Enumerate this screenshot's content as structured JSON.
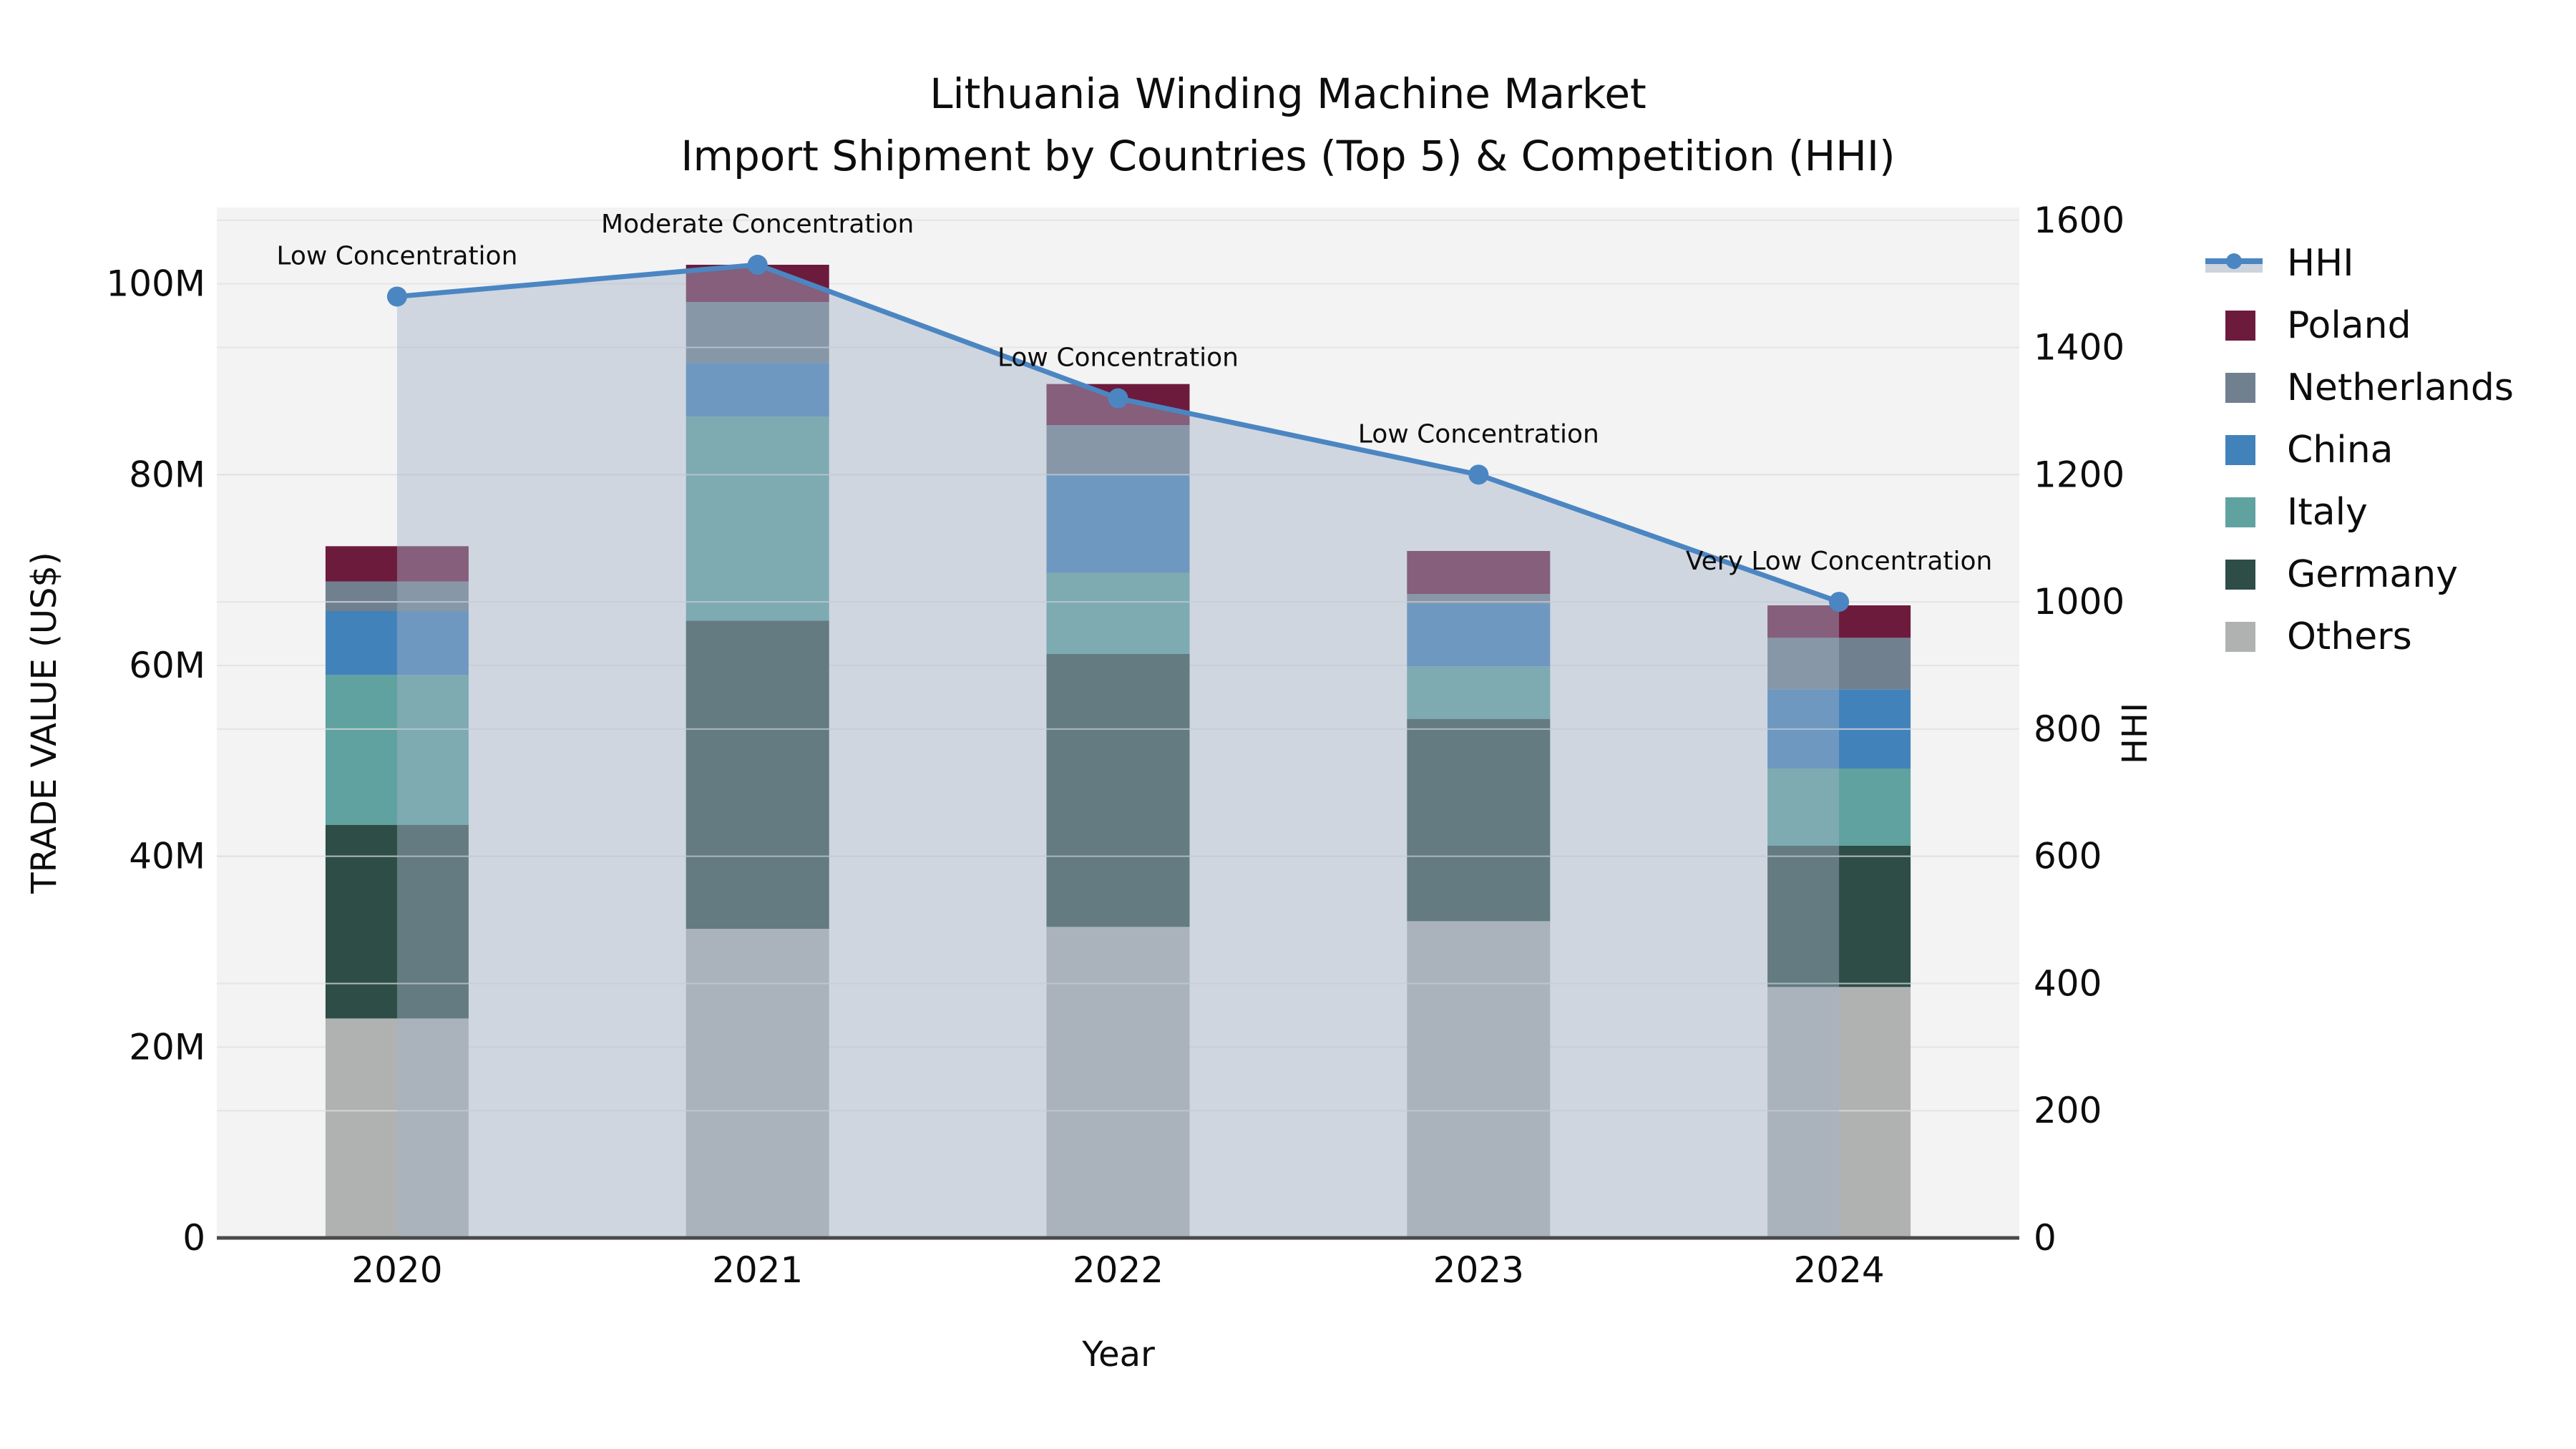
{
  "title": {
    "line1": "Lithuania Winding Machine Market",
    "line2": "Import Shipment by Countries (Top 5) & Competition (HHI)"
  },
  "axes": {
    "left_title": "TRADE VALUE (US$)",
    "right_title": "HHI",
    "bottom_title": "Year",
    "left_ticks": [
      {
        "label": "0",
        "value_musd": 0
      },
      {
        "label": "20M",
        "value_musd": 20
      },
      {
        "label": "40M",
        "value_musd": 40
      },
      {
        "label": "60M",
        "value_musd": 60
      },
      {
        "label": "80M",
        "value_musd": 80
      },
      {
        "label": "100M",
        "value_musd": 100
      }
    ],
    "right_ticks": [
      {
        "label": "0",
        "value": 0
      },
      {
        "label": "200",
        "value": 200
      },
      {
        "label": "400",
        "value": 400
      },
      {
        "label": "600",
        "value": 600
      },
      {
        "label": "800",
        "value": 800
      },
      {
        "label": "1000",
        "value": 1000
      },
      {
        "label": "1200",
        "value": 1200
      },
      {
        "label": "1400",
        "value": 1400
      },
      {
        "label": "1600",
        "value": 1600
      }
    ]
  },
  "legend": {
    "items": [
      {
        "label": "HHI",
        "type": "line",
        "color": "#4b86c2"
      },
      {
        "label": "Poland",
        "type": "square",
        "color": "#6c1b3d"
      },
      {
        "label": "Netherlands",
        "type": "square",
        "color": "#71808f"
      },
      {
        "label": "China",
        "type": "square",
        "color": "#4282bb"
      },
      {
        "label": "Italy",
        "type": "square",
        "color": "#5fa2a0"
      },
      {
        "label": "Germany",
        "type": "square",
        "color": "#2e4d47"
      },
      {
        "label": "Others",
        "type": "square",
        "color": "#b0b2b2"
      }
    ]
  },
  "chart_data": {
    "type": "bar",
    "subtype": "stacked-bars-with-line-overlay",
    "title": "Lithuania Winding Machine Market",
    "subtitle": "Import Shipment by Countries (Top 5) & Competition (HHI)",
    "xlabel": "Year",
    "ylabel": "TRADE VALUE (US$)",
    "ylabel_right": "HHI",
    "categories": [
      "2020",
      "2021",
      "2022",
      "2023",
      "2024"
    ],
    "stack_order_bottom_to_top": [
      "Others",
      "Germany",
      "Italy",
      "China",
      "Netherlands",
      "Poland"
    ],
    "series": [
      {
        "name": "Others",
        "color": "#b0b2b2",
        "values_musd": [
          23.0,
          32.4,
          32.6,
          33.2,
          26.3
        ]
      },
      {
        "name": "Germany",
        "color": "#2e4d47",
        "values_musd": [
          20.3,
          32.3,
          28.6,
          21.2,
          14.8
        ]
      },
      {
        "name": "Italy",
        "color": "#5fa2a0",
        "values_musd": [
          15.7,
          21.4,
          8.5,
          5.5,
          8.1
        ]
      },
      {
        "name": "China",
        "color": "#4282bb",
        "values_musd": [
          6.7,
          5.6,
          10.3,
          6.6,
          8.3
        ]
      },
      {
        "name": "Netherlands",
        "color": "#71808f",
        "values_musd": [
          3.1,
          6.4,
          5.2,
          1.0,
          5.4
        ]
      },
      {
        "name": "Poland",
        "color": "#6c1b3d",
        "values_musd": [
          3.7,
          3.9,
          4.3,
          4.5,
          3.4
        ]
      }
    ],
    "bar_totals_musd": [
      72.5,
      102.0,
      89.5,
      72.0,
      66.3
    ],
    "line_series": {
      "name": "HHI",
      "color": "#4b86c2",
      "area_fill": "rgba(165,180,200,0.45)",
      "values": [
        1480,
        1530,
        1320,
        1200,
        1000
      ]
    },
    "annotations": [
      "Low Concentration",
      "Moderate Concentration",
      "Low Concentration",
      "Low Concentration",
      "Very Low Concentration"
    ],
    "ylim_left_musd": [
      0,
      108
    ],
    "ylim_right_hhi": [
      0,
      1620
    ],
    "grid": true,
    "legend_position": "right-outside"
  },
  "colors": {
    "figure_bg": "#ffffff",
    "plot_bg": "#f3f3f4",
    "grid_left": "#e4e4e6",
    "grid_right": "#dfdfe2",
    "spine": "#4a4a4a",
    "text": "#0d0d0d"
  }
}
